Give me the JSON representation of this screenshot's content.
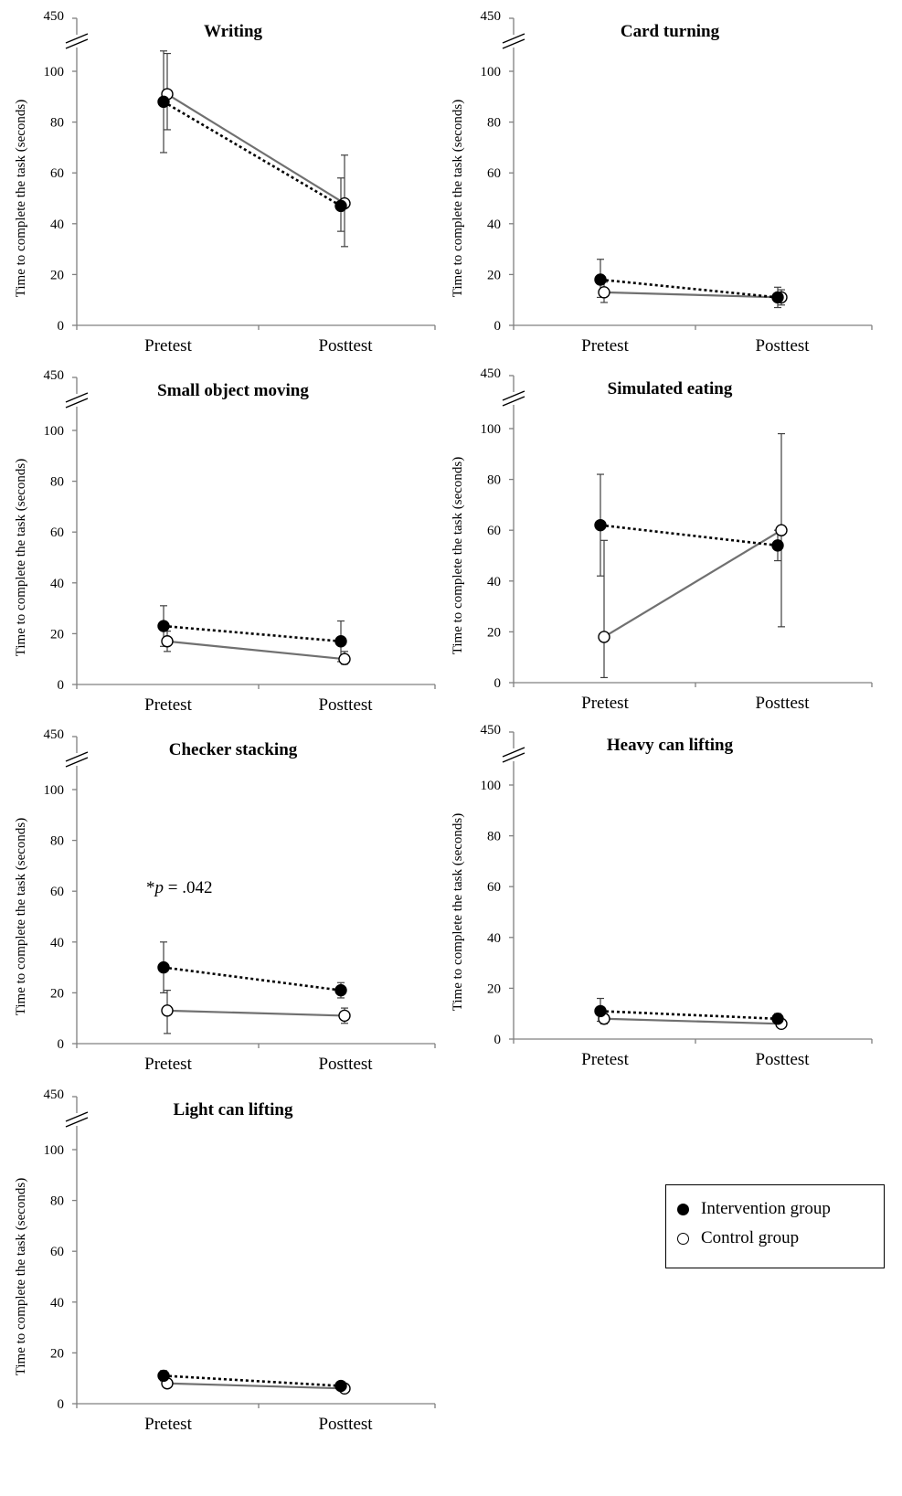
{
  "chart_data": {
    "type": "line",
    "y_axis_label": "Time to complete the task (seconds)",
    "categories": [
      "Pretest",
      "Posttest"
    ],
    "ylim": [
      0,
      100
    ],
    "break_value": "450",
    "y_ticks": [
      "0",
      "20",
      "40",
      "60",
      "80",
      "100"
    ],
    "series_names": [
      "Intervention group",
      "Control group"
    ],
    "panels": [
      {
        "title": "Writing",
        "series": [
          {
            "name": "Intervention group",
            "style": "dotted-filled",
            "values": [
              88,
              47
            ],
            "err_low": [
              68,
              37
            ],
            "err_high": [
              108,
              58
            ]
          },
          {
            "name": "Control group",
            "style": "solid-hollow",
            "values": [
              91,
              48
            ],
            "err_low": [
              77,
              31
            ],
            "err_high": [
              107,
              67
            ]
          }
        ]
      },
      {
        "title": "Card turning",
        "series": [
          {
            "name": "Intervention group",
            "style": "dotted-filled",
            "values": [
              18,
              11
            ],
            "err_low": [
              11,
              7
            ],
            "err_high": [
              26,
              15
            ]
          },
          {
            "name": "Control group",
            "style": "solid-hollow",
            "values": [
              13,
              11
            ],
            "err_low": [
              9,
              8
            ],
            "err_high": [
              17,
              14
            ]
          }
        ]
      },
      {
        "title": "Small object moving",
        "series": [
          {
            "name": "Intervention group",
            "style": "dotted-filled",
            "values": [
              23,
              17
            ],
            "err_low": [
              15,
              9
            ],
            "err_high": [
              31,
              25
            ]
          },
          {
            "name": "Control group",
            "style": "solid-hollow",
            "values": [
              17,
              10
            ],
            "err_low": [
              13,
              8
            ],
            "err_high": [
              21,
              13
            ]
          }
        ]
      },
      {
        "title": "Simulated eating",
        "series": [
          {
            "name": "Intervention group",
            "style": "dotted-filled",
            "values": [
              62,
              54
            ],
            "err_low": [
              42,
              48
            ],
            "err_high": [
              82,
              60
            ]
          },
          {
            "name": "Control group",
            "style": "solid-hollow",
            "values": [
              18,
              60
            ],
            "err_low": [
              2,
              22
            ],
            "err_high": [
              56,
              98
            ]
          }
        ]
      },
      {
        "title": "Checker stacking",
        "annotation": {
          "star": "*",
          "p": "p",
          "rest": " = .042"
        },
        "series": [
          {
            "name": "Intervention group",
            "style": "dotted-filled",
            "values": [
              30,
              21
            ],
            "err_low": [
              20,
              18
            ],
            "err_high": [
              40,
              24
            ]
          },
          {
            "name": "Control group",
            "style": "solid-hollow",
            "values": [
              13,
              11
            ],
            "err_low": [
              4,
              8
            ],
            "err_high": [
              21,
              14
            ]
          }
        ]
      },
      {
        "title": "Heavy can lifting",
        "series": [
          {
            "name": "Intervention group",
            "style": "dotted-filled",
            "values": [
              11,
              8
            ],
            "err_low": [
              7,
              6
            ],
            "err_high": [
              16,
              10
            ]
          },
          {
            "name": "Control group",
            "style": "solid-hollow",
            "values": [
              8,
              6
            ],
            "err_low": [
              6,
              5
            ],
            "err_high": [
              10,
              7
            ]
          }
        ]
      },
      {
        "title": "Light can lifting",
        "series": [
          {
            "name": "Intervention group",
            "style": "dotted-filled",
            "values": [
              11,
              7
            ],
            "err_low": [
              9,
              6
            ],
            "err_high": [
              13,
              8
            ]
          },
          {
            "name": "Control group",
            "style": "solid-hollow",
            "values": [
              8,
              6
            ],
            "err_low": [
              7,
              5
            ],
            "err_high": [
              9,
              7
            ]
          }
        ]
      }
    ],
    "legend": {
      "position": "bottom-right",
      "items": [
        {
          "label": "Intervention group",
          "marker": "filled-circle"
        },
        {
          "label": "Control group",
          "marker": "hollow-circle"
        }
      ]
    }
  }
}
